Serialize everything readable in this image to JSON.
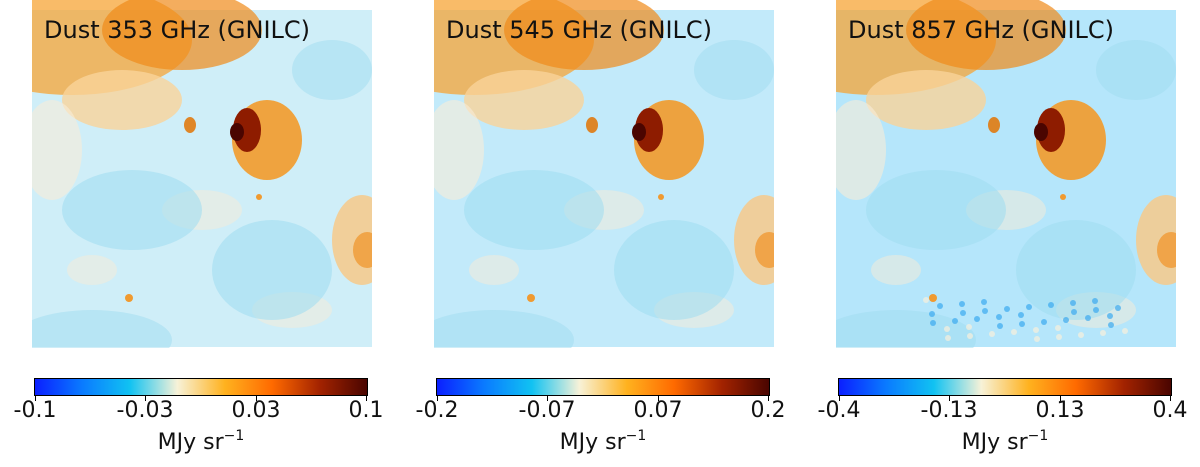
{
  "chart_data": [
    {
      "type": "heatmap",
      "title": "Dust 353 GHz (GNILC)",
      "colorbar": {
        "min": -0.1,
        "max": 0.1,
        "ticks": [
          "-0.1",
          "-0.03",
          "0.03",
          "0.1"
        ],
        "unit_base": "MJy sr",
        "unit_exp": "−1"
      }
    },
    {
      "type": "heatmap",
      "title": "Dust 545 GHz (GNILC)",
      "colorbar": {
        "min": -0.2,
        "max": 0.2,
        "ticks": [
          "-0.2",
          "-0.07",
          "0.07",
          "0.2"
        ],
        "unit_base": "MJy sr",
        "unit_exp": "−1"
      }
    },
    {
      "type": "heatmap",
      "title": "Dust 857 GHz (GNILC)",
      "colorbar": {
        "min": -0.4,
        "max": 0.4,
        "ticks": [
          "-0.4",
          "-0.13",
          "0.13",
          "0.4"
        ],
        "unit_base": "MJy sr",
        "unit_exp": "−1"
      }
    }
  ],
  "colormap": {
    "name": "planck",
    "stops": [
      "#0b1fff",
      "#0a7bff",
      "#11c2f2",
      "#f7f2d8",
      "#ffb21f",
      "#ff6a00",
      "#a32300",
      "#4a0500"
    ]
  }
}
